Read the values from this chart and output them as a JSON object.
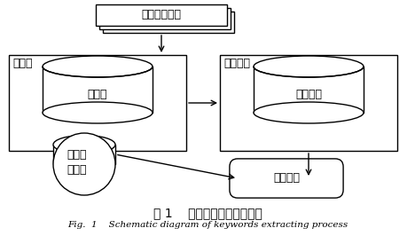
{
  "bg_color": "#ffffff",
  "fig_caption_cn": "图 1    特征词提取过程示意图",
  "fig_caption_en": "Fig.  1    Schematic diagram of keywords extracting process",
  "doc_label": "构件描述文档",
  "tok_label": "分词器",
  "stopword_label": "停用词",
  "sem_label": "语义扩展",
  "ontology_label": "语义本体",
  "comp_label": "构件标\n识集合",
  "feat_label": "特征词集",
  "lw": 1.0,
  "font_size": 9
}
